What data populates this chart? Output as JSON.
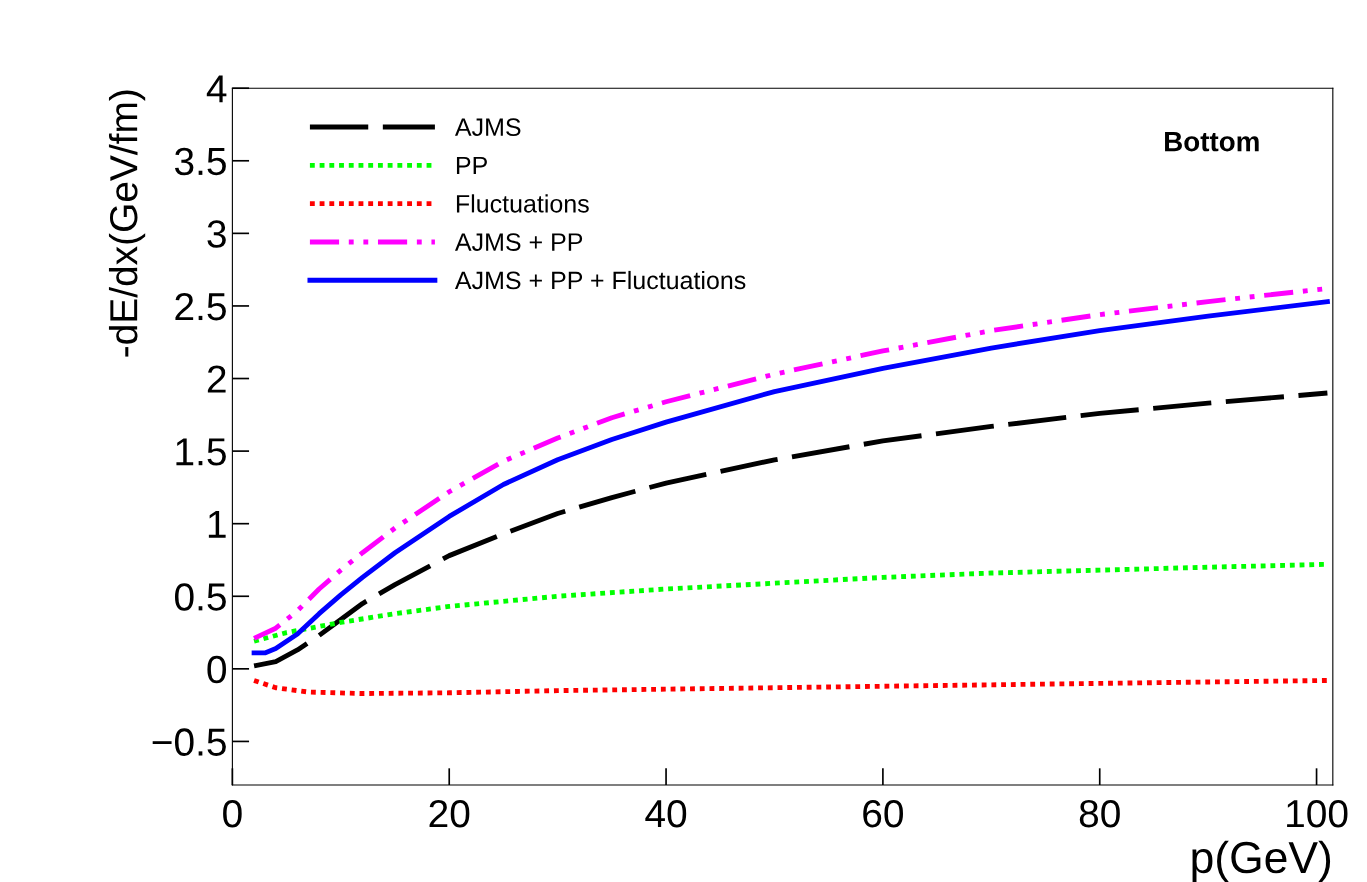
{
  "chart_data": {
    "type": "line",
    "xlabel": "p(GeV)",
    "ylabel": "-dE/dx(GeV/fm)",
    "annotations": [
      "Bottom"
    ],
    "xlim": [
      0,
      101.5
    ],
    "ylim": [
      -0.8,
      4
    ],
    "xticks": [
      0,
      20,
      40,
      60,
      80,
      100
    ],
    "yticks": [
      {
        "value": -0.5,
        "label": "−0.5"
      },
      0,
      0.5,
      1,
      1.5,
      2,
      2.5,
      3,
      3.5,
      4
    ],
    "grid": false,
    "legend": "top left",
    "marker": "none",
    "series": [
      {
        "name": "AJMS",
        "color": "#000000",
        "line_style": "dashed",
        "x": [
          2,
          4,
          6,
          8,
          10,
          12,
          15,
          20,
          25,
          30,
          35,
          40,
          50,
          60,
          70,
          80,
          90,
          101
        ],
        "values": [
          0.02,
          0.05,
          0.13,
          0.23,
          0.34,
          0.45,
          0.58,
          0.78,
          0.93,
          1.07,
          1.18,
          1.28,
          1.44,
          1.57,
          1.67,
          1.76,
          1.83,
          1.9
        ]
      },
      {
        "name": "PP",
        "color": "#00ff00",
        "line_style": "dotted",
        "x": [
          2,
          5,
          10,
          15,
          20,
          30,
          40,
          50,
          60,
          70,
          80,
          90,
          101
        ],
        "values": [
          0.19,
          0.25,
          0.32,
          0.38,
          0.43,
          0.5,
          0.55,
          0.59,
          0.63,
          0.66,
          0.68,
          0.7,
          0.72
        ]
      },
      {
        "name": "Fluctuations",
        "color": "#ff0000",
        "line_style": "dotted",
        "x": [
          2,
          4,
          7,
          12,
          20,
          30,
          40,
          60,
          80,
          101
        ],
        "values": [
          -0.08,
          -0.13,
          -0.16,
          -0.17,
          -0.165,
          -0.15,
          -0.14,
          -0.12,
          -0.1,
          -0.08
        ]
      },
      {
        "name": "AJMS + PP",
        "color": "#ff00ff",
        "line_style": "dashdotdot",
        "x": [
          2,
          4,
          6,
          8,
          10,
          12,
          15,
          20,
          25,
          30,
          35,
          40,
          50,
          60,
          70,
          80,
          90,
          101
        ],
        "values": [
          0.21,
          0.28,
          0.4,
          0.55,
          0.68,
          0.8,
          0.97,
          1.22,
          1.43,
          1.59,
          1.73,
          1.84,
          2.03,
          2.19,
          2.33,
          2.44,
          2.53,
          2.62
        ]
      },
      {
        "name": "AJMS + PP + Fluctuations",
        "color": "#0000ff",
        "line_style": "solid",
        "x": [
          2,
          3,
          4,
          6,
          8,
          10,
          12,
          15,
          20,
          25,
          30,
          35,
          40,
          50,
          60,
          70,
          80,
          90,
          101
        ],
        "values": [
          0.11,
          0.11,
          0.14,
          0.24,
          0.38,
          0.51,
          0.63,
          0.8,
          1.05,
          1.27,
          1.44,
          1.58,
          1.7,
          1.91,
          2.07,
          2.21,
          2.33,
          2.43,
          2.53
        ]
      }
    ]
  }
}
